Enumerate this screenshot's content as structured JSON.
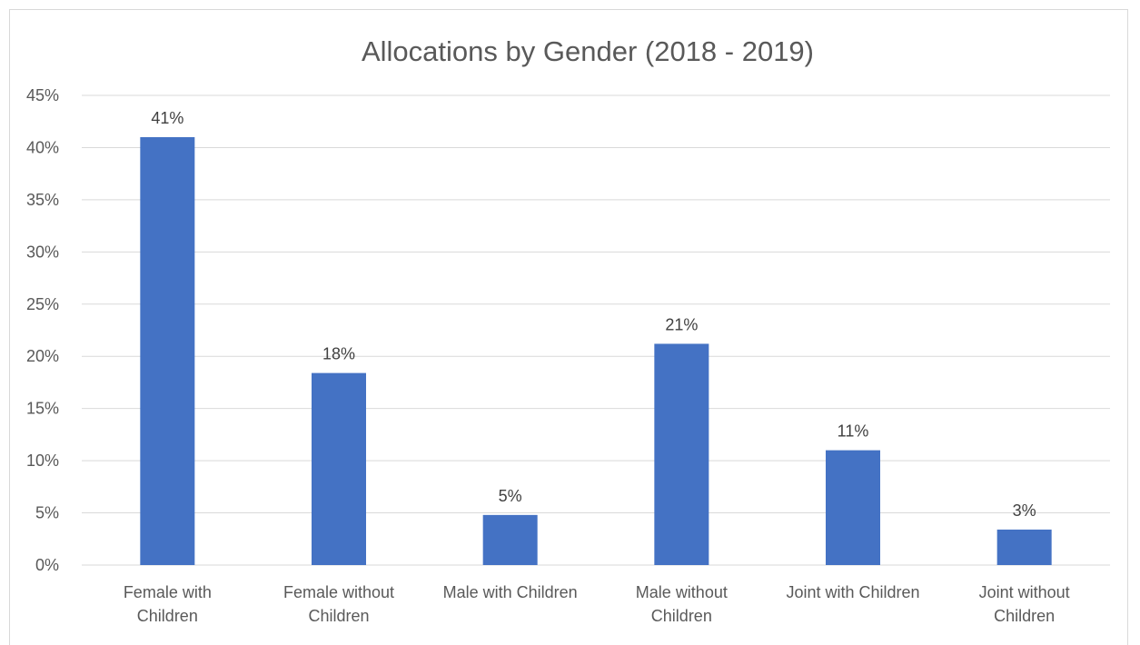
{
  "chart_data": {
    "type": "bar",
    "title": "Allocations by Gender (2018 - 2019)",
    "categories": [
      [
        "Female with",
        "Children"
      ],
      [
        "Female without",
        "Children"
      ],
      [
        "Male with Children"
      ],
      [
        "Male without",
        "Children"
      ],
      [
        "Joint with Children"
      ],
      [
        "Joint without",
        "Children"
      ]
    ],
    "values": [
      41,
      18.4,
      4.8,
      21.2,
      11,
      3.4
    ],
    "data_labels": [
      "41%",
      "18%",
      "5%",
      "21%",
      "11%",
      "3%"
    ],
    "y_ticks": [
      "0%",
      "5%",
      "10%",
      "15%",
      "20%",
      "25%",
      "30%",
      "35%",
      "40%",
      "45%"
    ],
    "ylim": [
      0,
      45
    ],
    "y_step": 5,
    "bar_color": "#4472c4",
    "grid": true,
    "legend": "none"
  }
}
